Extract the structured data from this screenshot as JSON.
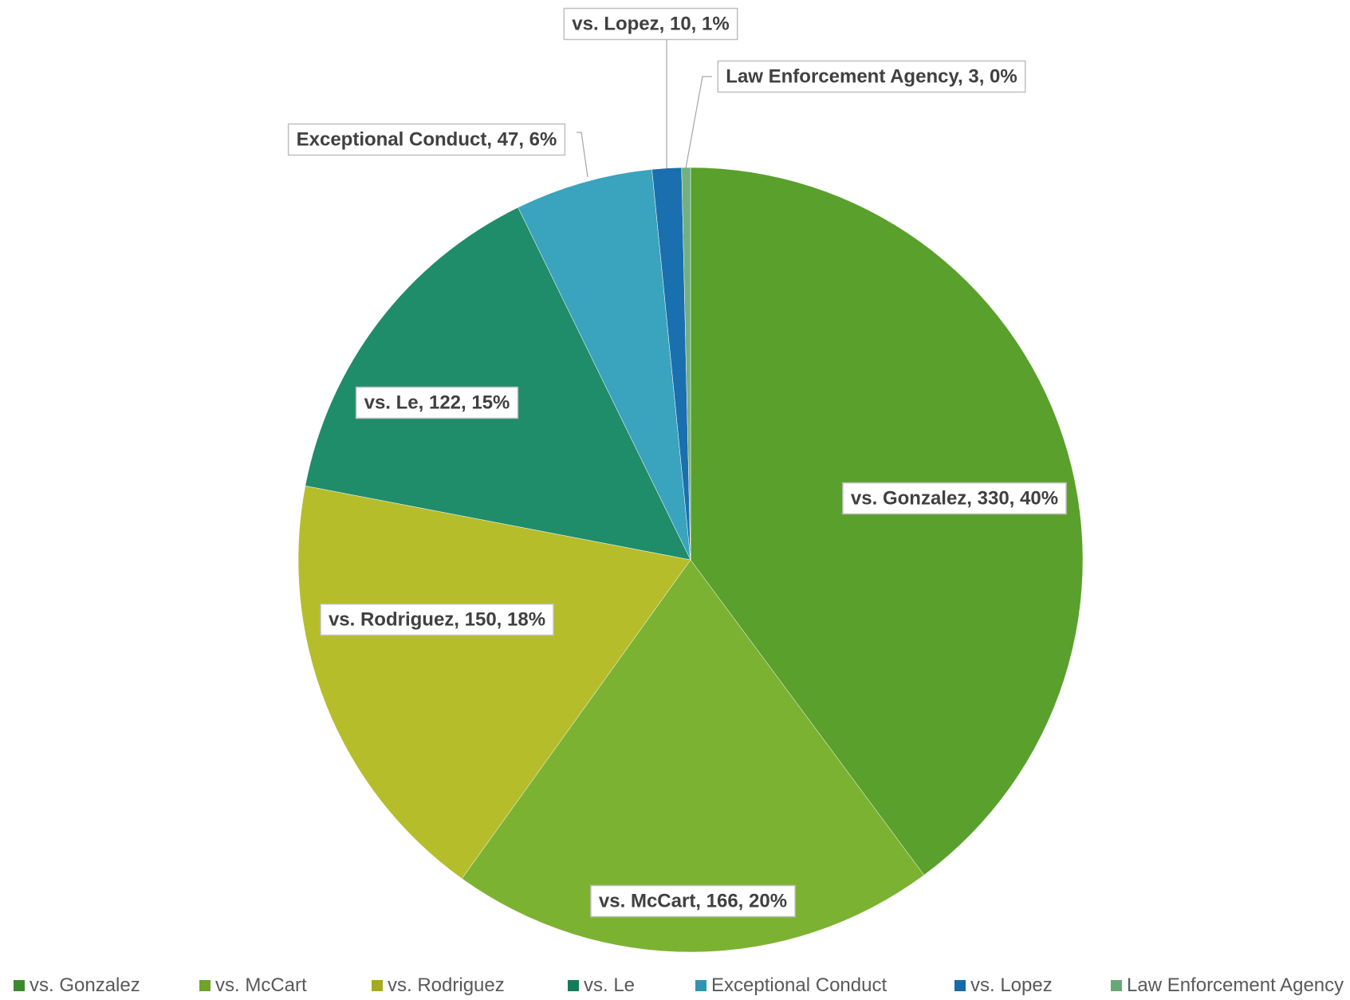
{
  "chart_data": {
    "type": "pie",
    "categories": [
      "vs. Gonzalez",
      "vs. McCart",
      "vs. Rodriguez",
      "vs. Le",
      "Exceptional Conduct",
      "vs. Lopez",
      "Law Enforcement Agency"
    ],
    "values": [
      330,
      166,
      150,
      122,
      47,
      10,
      3
    ],
    "percentages": [
      "40%",
      "20%",
      "18%",
      "15%",
      "6%",
      "1%",
      "0%"
    ],
    "data_labels": [
      "vs. Gonzalez, 330, 40%",
      "vs. McCart, 166, 20%",
      "vs. Rodriguez, 150, 18%",
      "vs. Le, 122, 15%",
      "Exceptional Conduct, 47, 6%",
      "vs. Lopez, 10, 1%",
      "Law Enforcement Agency, 3, 0%"
    ],
    "colors": [
      "#5aa02c",
      "#7cb232",
      "#b5bd2b",
      "#1f8c6a",
      "#3aa3bd",
      "#1a6fae",
      "#72b07d"
    ],
    "legend_colors": [
      "#3d8a2e",
      "#6fa32a",
      "#a5aa22",
      "#157a5a",
      "#2f96b0",
      "#176aa5",
      "#68a874"
    ],
    "legend": {
      "position": "bottom",
      "items": [
        "vs. Gonzalez",
        "vs. McCart",
        "vs. Rodriguez",
        "vs. Le",
        "Exceptional Conduct",
        "vs. Lopez",
        "Law Enforcement Agency"
      ]
    },
    "title": ""
  }
}
